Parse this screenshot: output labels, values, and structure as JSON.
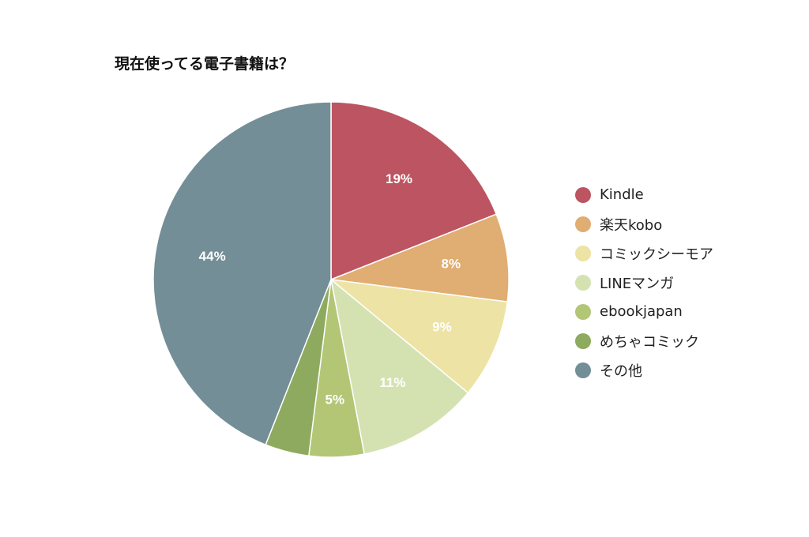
{
  "chart_data": {
    "type": "pie",
    "title": "現在使ってる電子書籍は？",
    "legend_position": "right",
    "slices": [
      {
        "name": "Kindle",
        "value": 19,
        "label": "19%",
        "color": "#bd5461"
      },
      {
        "name": "楽天kobo",
        "value": 8,
        "label": "8%",
        "color": "#e0ad72"
      },
      {
        "name": "コミックシーモア",
        "value": 9,
        "label": "9%",
        "color": "#ede3a5"
      },
      {
        "name": "LINEマンガ",
        "value": 11,
        "label": "11%",
        "color": "#d4e2b2"
      },
      {
        "name": "ebookjapan",
        "value": 5,
        "label": "5%",
        "color": "#b3c676"
      },
      {
        "name": "めちゃコミック",
        "value": 4,
        "label": "",
        "color": "#8eaa5f"
      },
      {
        "name": "その他",
        "value": 44,
        "label": "44%",
        "color": "#738e96"
      }
    ]
  }
}
